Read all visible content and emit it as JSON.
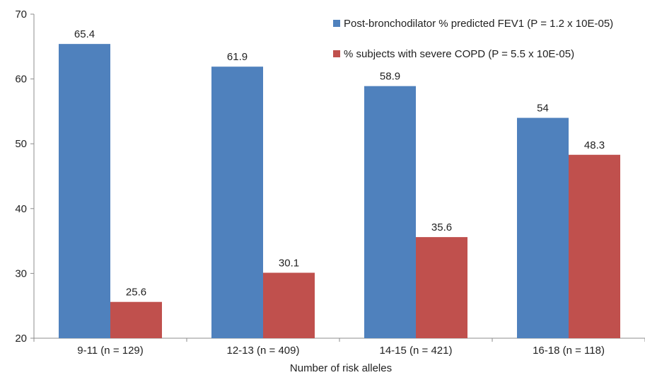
{
  "chart_data": {
    "type": "bar",
    "title": "",
    "xlabel": "Number of risk alleles",
    "ylabel": "",
    "ylim": [
      20,
      70
    ],
    "yticks": [
      20,
      30,
      40,
      50,
      60,
      70
    ],
    "grid": false,
    "legend_position": "top-right",
    "categories": [
      "9-11 (n = 129)",
      "12-13 (n = 409)",
      "14-15 (n = 421)",
      "16-18 (n = 118)"
    ],
    "series": [
      {
        "name": "Post-bronchodilator % predicted FEV1 (P = 1.2 x 10E-05)",
        "values": [
          65.4,
          61.9,
          58.9,
          54
        ],
        "color": "#4f81bd"
      },
      {
        "name": "% subjects with severe COPD (P = 5.5 x 10E-05)",
        "values": [
          25.6,
          30.1,
          35.6,
          48.3
        ],
        "color": "#c0504d"
      }
    ]
  }
}
